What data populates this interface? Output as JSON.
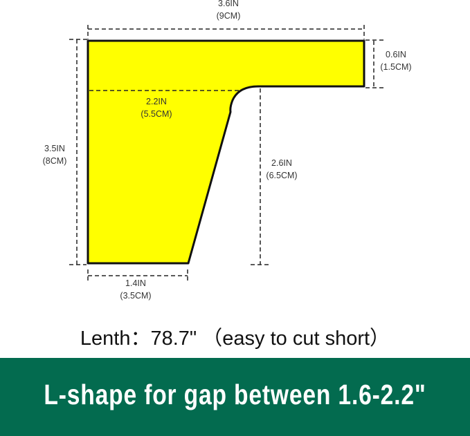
{
  "colors": {
    "shape_fill": "#ffff00",
    "banner_bg": "#036b4f"
  },
  "dimensions": {
    "top_width": {
      "in": "3.6IN",
      "cm": "(9CM)"
    },
    "arm_height": {
      "in": "0.6IN",
      "cm": "(1.5CM)"
    },
    "inner_width": {
      "in": "2.2IN",
      "cm": "(5.5CM)"
    },
    "total_height": {
      "in": "3.5IN",
      "cm": "(8CM)"
    },
    "gap_height": {
      "in": "2.6IN",
      "cm": "(6.5CM)"
    },
    "bottom_width": {
      "in": "1.4IN",
      "cm": "(3.5CM)"
    }
  },
  "length_text": "Lenth：78.7\" （easy to cut short）",
  "banner_text": "L-shape for gap between 1.6-2.2\""
}
